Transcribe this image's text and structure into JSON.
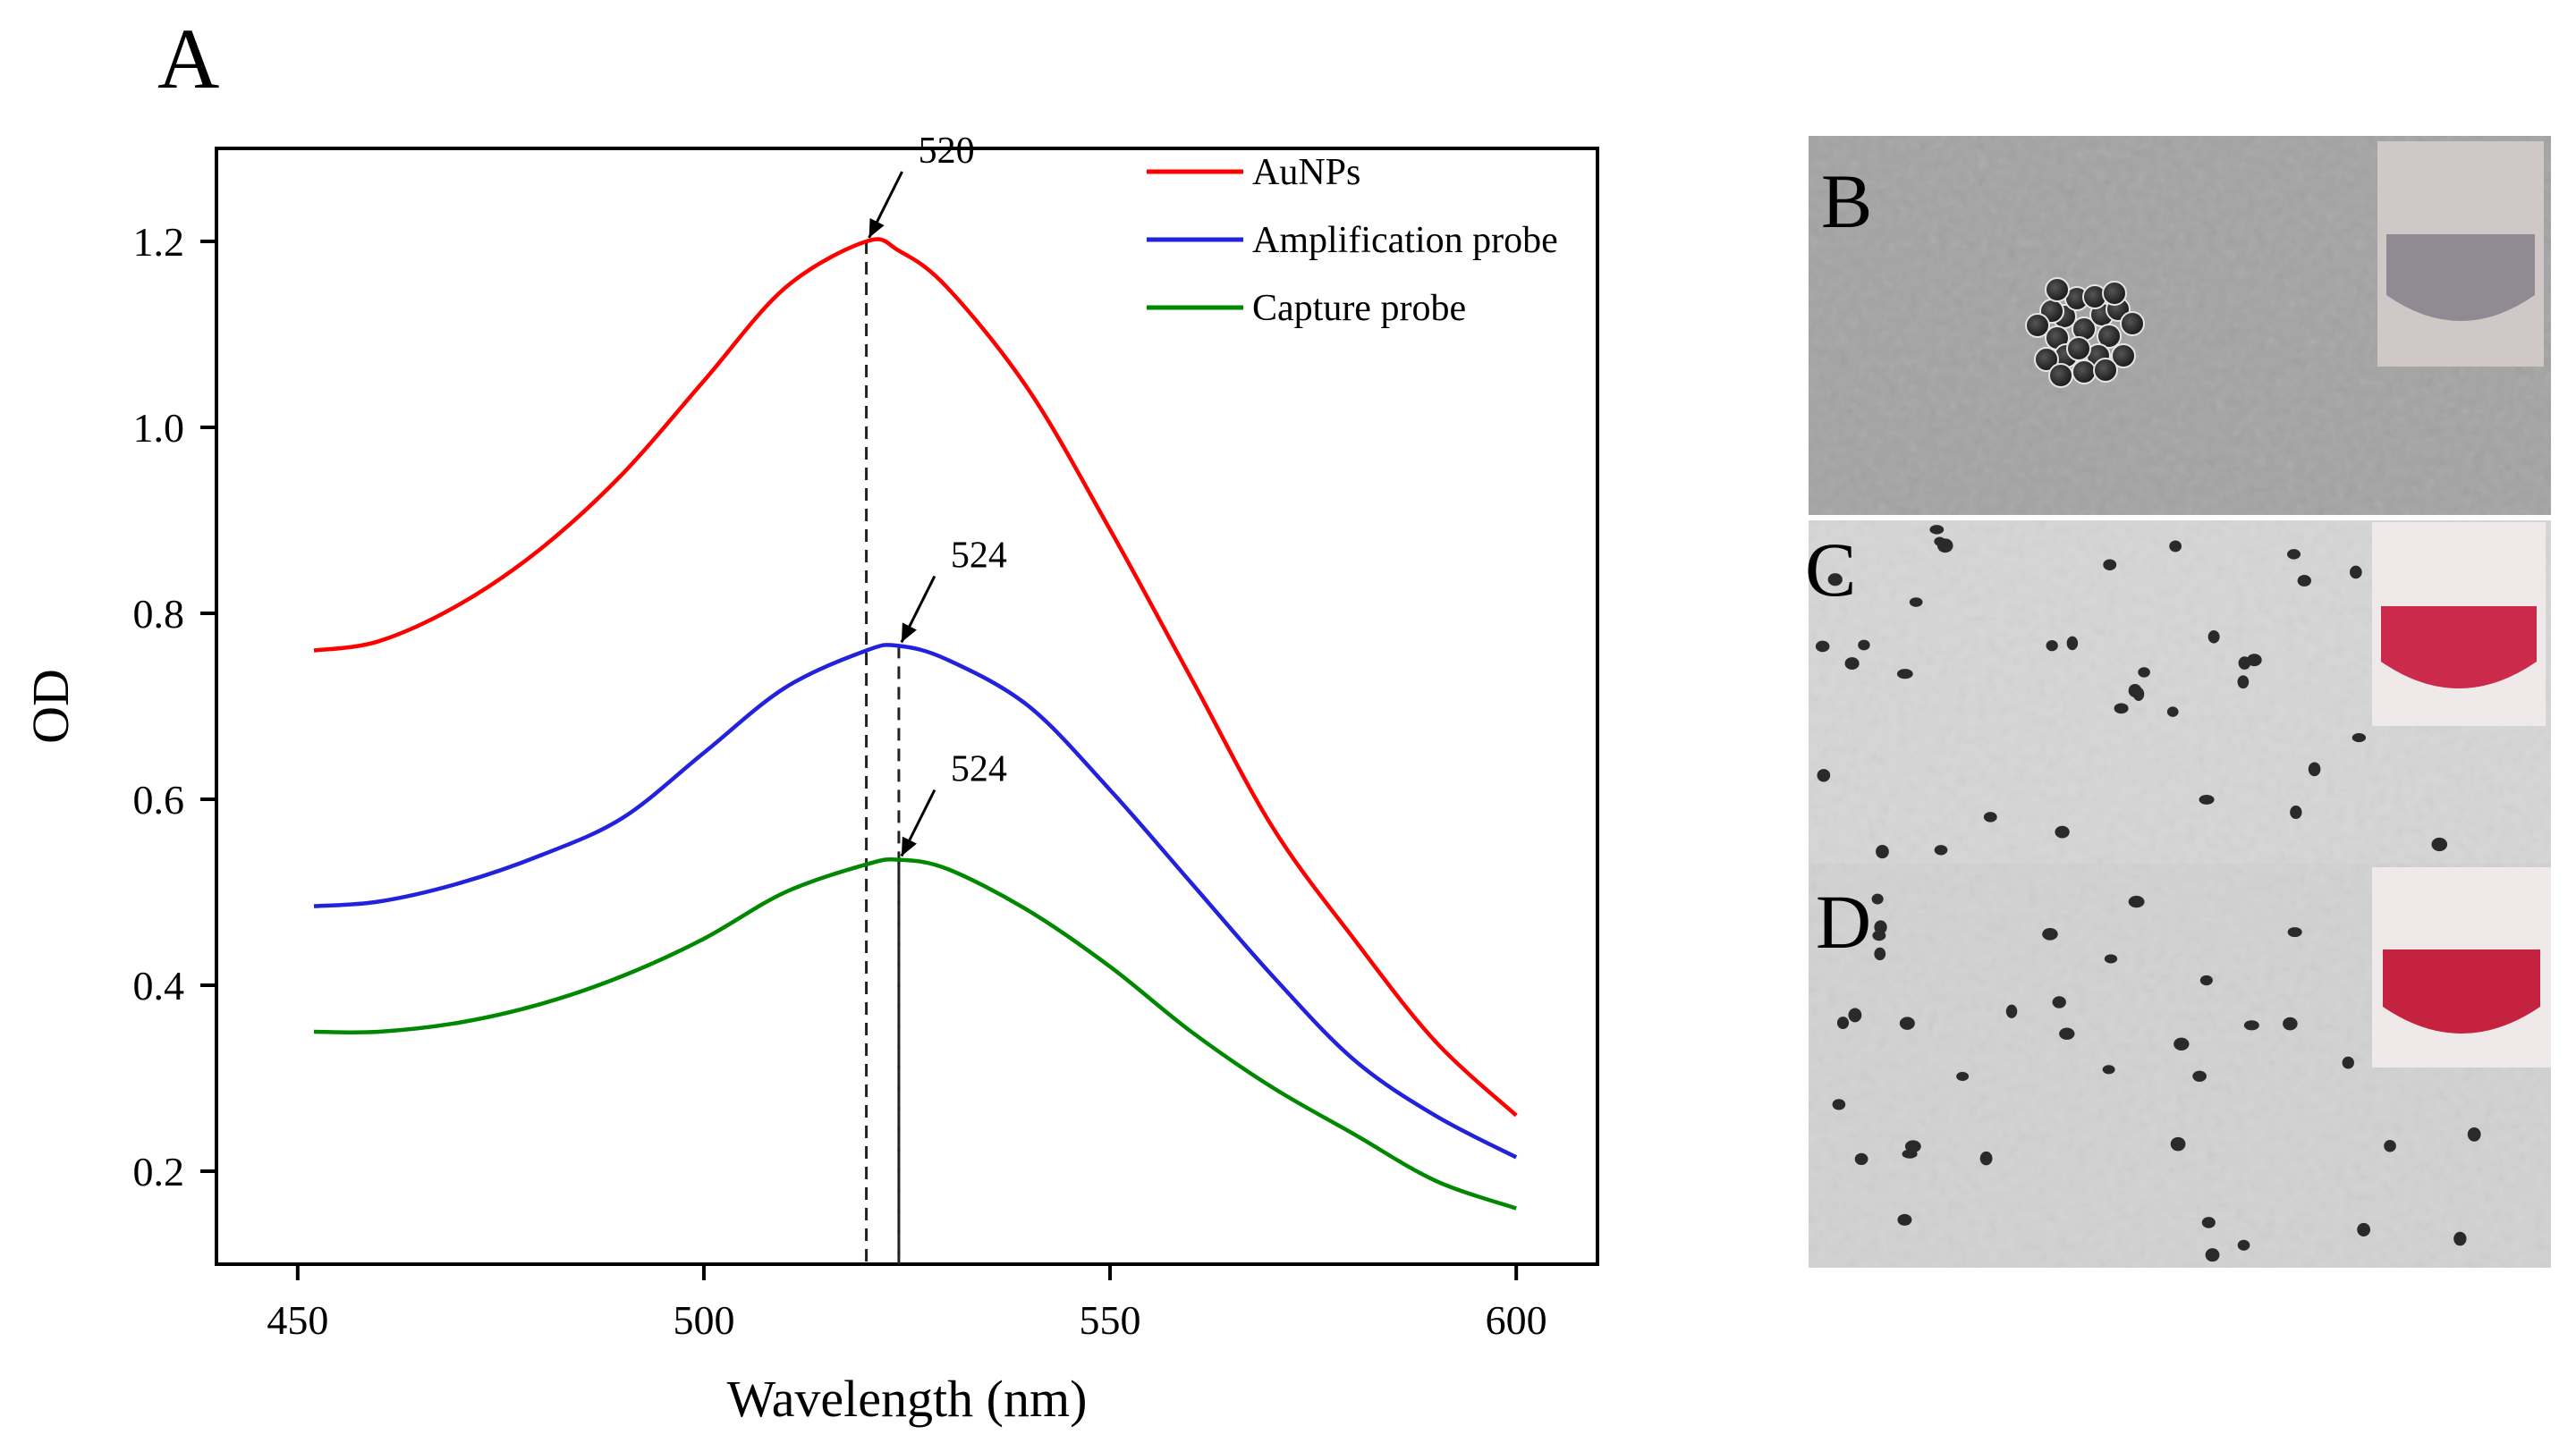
{
  "panel_labels": {
    "a": "A",
    "b": "B",
    "c": "C",
    "d": "D"
  },
  "chart_data": {
    "type": "line",
    "xlabel": "Wavelength (nm)",
    "ylabel": "OD",
    "xlim": [
      440,
      610
    ],
    "ylim": [
      0.1,
      1.3
    ],
    "xticks": [
      450,
      500,
      550,
      600
    ],
    "yticks": [
      0.2,
      0.4,
      0.6,
      0.8,
      1.0,
      1.2
    ],
    "ytick_labels": [
      "0.2",
      "0.4",
      "0.6",
      "0.8",
      "1.0",
      "1.2"
    ],
    "x": [
      452,
      460,
      470,
      480,
      490,
      500,
      510,
      520,
      524,
      530,
      540,
      550,
      560,
      570,
      580,
      590,
      600
    ],
    "legend_position": "top-right",
    "series": [
      {
        "name": "AuNPs",
        "color": "#ff0000",
        "values": [
          0.76,
          0.77,
          0.81,
          0.87,
          0.95,
          1.05,
          1.15,
          1.2,
          1.19,
          1.15,
          1.04,
          0.89,
          0.73,
          0.57,
          0.45,
          0.34,
          0.26
        ]
      },
      {
        "name": "Amplification probe",
        "color": "#2222dd",
        "values": [
          0.485,
          0.49,
          0.51,
          0.54,
          0.58,
          0.65,
          0.72,
          0.76,
          0.765,
          0.75,
          0.7,
          0.61,
          0.51,
          0.41,
          0.32,
          0.26,
          0.215
        ]
      },
      {
        "name": "Capture probe",
        "color": "#008800",
        "values": [
          0.35,
          0.35,
          0.36,
          0.38,
          0.41,
          0.45,
          0.5,
          0.53,
          0.535,
          0.525,
          0.48,
          0.42,
          0.35,
          0.29,
          0.24,
          0.19,
          0.16
        ]
      }
    ],
    "annotations": [
      {
        "text": "520",
        "x": 520,
        "y": 1.2,
        "series": "AuNPs"
      },
      {
        "text": "524",
        "x": 524,
        "y": 0.765,
        "series": "Amplification probe"
      },
      {
        "text": "524",
        "x": 524,
        "y": 0.535,
        "series": "Capture probe"
      }
    ]
  },
  "images": {
    "b": {
      "inset_liquid": "#8f8a93",
      "nanoparticles": "aggregated"
    },
    "c": {
      "inset_liquid": "#cc2a4a",
      "nanoparticles": "dispersed"
    },
    "d": {
      "inset_liquid": "#c5223f",
      "nanoparticles": "dispersed"
    }
  }
}
